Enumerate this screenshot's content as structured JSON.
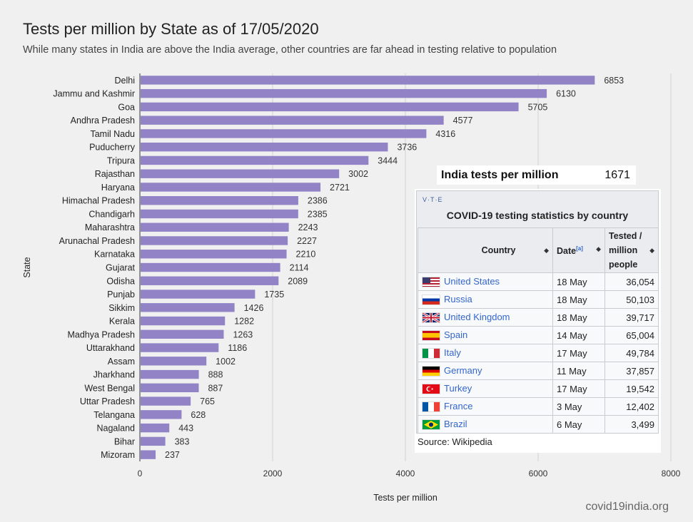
{
  "chart_data": {
    "type": "bar",
    "orientation": "horizontal",
    "title": "Tests per million by State as of 17/05/2020",
    "subtitle": "While many states in India are above the India average, other countries are far ahead in testing relative to population",
    "xlabel": "Tests per million",
    "ylabel": "State",
    "xlim": [
      0,
      8000
    ],
    "xticks": [
      0,
      2000,
      4000,
      6000,
      8000
    ],
    "grid": true,
    "bar_color": "#9183c6",
    "categories": [
      "Delhi",
      "Jammu and Kashmir",
      "Goa",
      "Andhra Pradesh",
      "Tamil Nadu",
      "Puducherry",
      "Tripura",
      "Rajasthan",
      "Haryana",
      "Himachal Pradesh",
      "Chandigarh",
      "Maharashtra",
      "Arunachal Pradesh",
      "Karnataka",
      "Gujarat",
      "Odisha",
      "Punjab",
      "Sikkim",
      "Kerala",
      "Madhya Pradesh",
      "Uttarakhand",
      "Assam",
      "Jharkhand",
      "West Bengal",
      "Uttar Pradesh",
      "Telangana",
      "Nagaland",
      "Bihar",
      "Mizoram"
    ],
    "values": [
      6853,
      6130,
      5705,
      4577,
      4316,
      3736,
      3444,
      3002,
      2721,
      2386,
      2385,
      2243,
      2227,
      2210,
      2114,
      2089,
      1735,
      1426,
      1282,
      1263,
      1186,
      1002,
      888,
      887,
      765,
      628,
      443,
      383,
      237
    ]
  },
  "india_box": {
    "label": "India tests per million",
    "value": "1671"
  },
  "wiki_table": {
    "vte": "V·T·E",
    "caption": "COVID-19 testing statistics by country",
    "headers": {
      "country": "Country",
      "date": "Date",
      "date_note": "[a]",
      "tested_line1": "Tested /",
      "tested_line2": "million",
      "tested_line3": "people"
    },
    "rows": [
      {
        "country": "United States",
        "date": "18 May",
        "value": "36,054",
        "flag": "us-flag-icon"
      },
      {
        "country": "Russia",
        "date": "18 May",
        "value": "50,103",
        "flag": "russia-flag-icon"
      },
      {
        "country": "United Kingdom",
        "date": "18 May",
        "value": "39,717",
        "flag": "uk-flag-icon"
      },
      {
        "country": "Spain",
        "date": "14 May",
        "value": "65,004",
        "flag": "spain-flag-icon"
      },
      {
        "country": "Italy",
        "date": "17 May",
        "value": "49,784",
        "flag": "italy-flag-icon"
      },
      {
        "country": "Germany",
        "date": "11 May",
        "value": "37,857",
        "flag": "germany-flag-icon"
      },
      {
        "country": "Turkey",
        "date": "17 May",
        "value": "19,542",
        "flag": "turkey-flag-icon"
      },
      {
        "country": "France",
        "date": "3 May",
        "value": "12,402",
        "flag": "france-flag-icon"
      },
      {
        "country": "Brazil",
        "date": "6 May",
        "value": "3,499",
        "flag": "brazil-flag-icon"
      }
    ],
    "source": "Source: Wikipedia"
  },
  "watermark": "covid19india.org"
}
